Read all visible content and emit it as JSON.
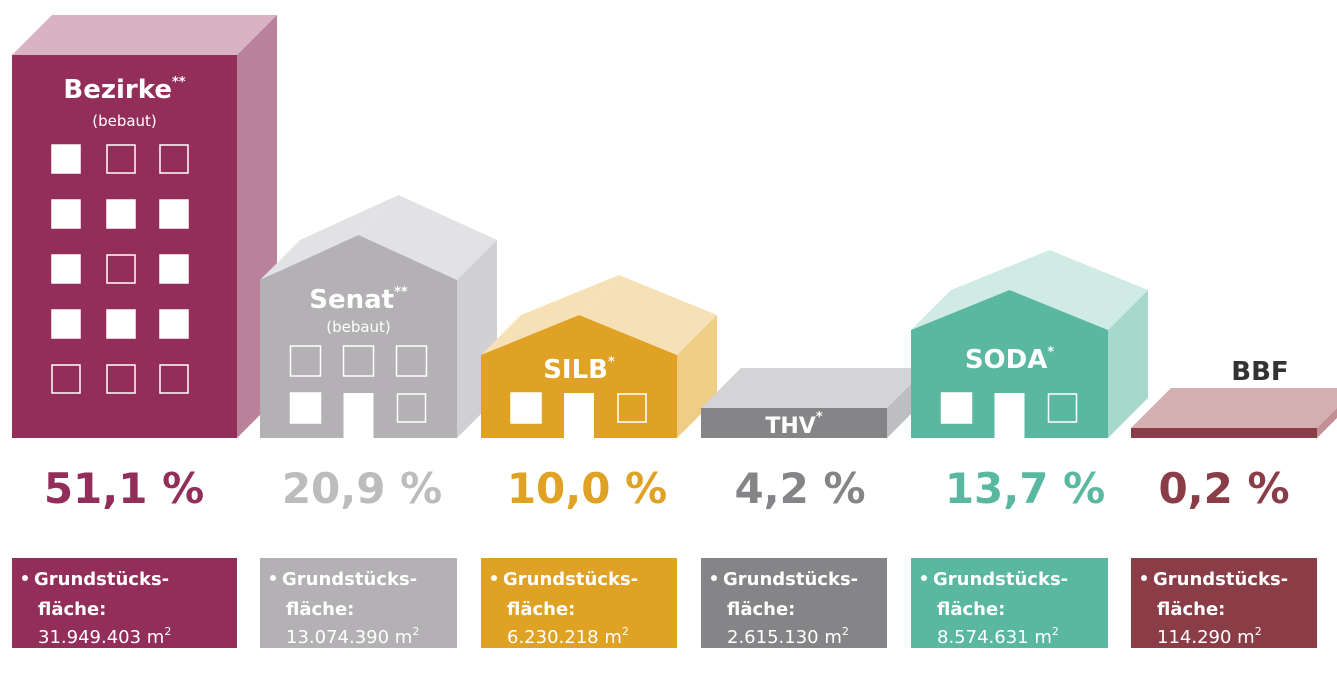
{
  "items": [
    {
      "name": "Bezirke",
      "mark": "**",
      "note": "(bebaut)",
      "percent": "51,1 %",
      "label_lines": [
        "Grundstücks-",
        "fläche:"
      ],
      "area": "31.949.403",
      "unit": "m",
      "unit_power": "2",
      "color": "#932e5a"
    },
    {
      "name": "Senat",
      "mark": "**",
      "note": "(bebaut)",
      "percent": "20,9 %",
      "label_lines": [
        "Grundstücks-",
        "fläche:"
      ],
      "area": "13.074.390",
      "unit": "m",
      "unit_power": "2",
      "color": "#b3b1b3"
    },
    {
      "name": "SILB",
      "mark": "*",
      "percent": "10,0 %",
      "label_lines": [
        "Grundstücks-",
        "fläche:"
      ],
      "area": "6.230.218",
      "unit": "m",
      "unit_power": "2",
      "color": "#e0a224"
    },
    {
      "name": "THV",
      "mark": "*",
      "percent": "4,2 %",
      "label_lines": [
        "Grundstücks-",
        "fläche:"
      ],
      "area": "2.615.130",
      "unit": "m",
      "unit_power": "2",
      "color": "#858487"
    },
    {
      "name": "SODA",
      "mark": "*",
      "percent": "13,7 %",
      "label_lines": [
        "Grundstücks-",
        "fläche:"
      ],
      "area": "8.574.631",
      "unit": "m",
      "unit_power": "2",
      "color": "#5ab8a1"
    },
    {
      "name": "BBF",
      "percent": "0,2 %",
      "label_lines": [
        "Grundstücks-",
        "fläche:"
      ],
      "area": "114.290",
      "unit": "m",
      "unit_power": "2",
      "color": "#8a3d47"
    }
  ]
}
